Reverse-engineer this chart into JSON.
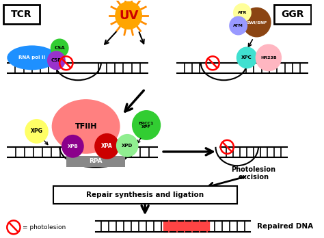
{
  "bg_color": "#ffffff",
  "dna_color": "#000000",
  "tcr_label": "TCR",
  "ggr_label": "GGR",
  "uv_label": "UV",
  "repair_label": "Repair synthesis and ligation",
  "photolesion_label": "Photolesion\nexcision",
  "repaired_label": "Repaired DNA",
  "legend_label": "= photolesion",
  "rna_pol_color": "#1E90FF",
  "csa_color": "#32CD32",
  "csb_color": "#9932CC",
  "tfiih_color": "#FF8080",
  "xpa_color": "#cc0000",
  "xpb_color": "#8B008B",
  "xpd_color": "#90EE90",
  "xpg_color": "#FFFF66",
  "ercc1_color": "#32CD32",
  "rpa_color": "#888888",
  "atr_color": "#FFFF99",
  "atm_color": "#9999FF",
  "swisnf_color": "#8B4513",
  "xpc_color": "#40E0D0",
  "hr23b_color": "#FFB6C1",
  "sun_color": "#FFA500",
  "sun_ray_color": "#FF8C00",
  "photolesion_color": "#ff0000",
  "highlight_color": "#ff4444"
}
